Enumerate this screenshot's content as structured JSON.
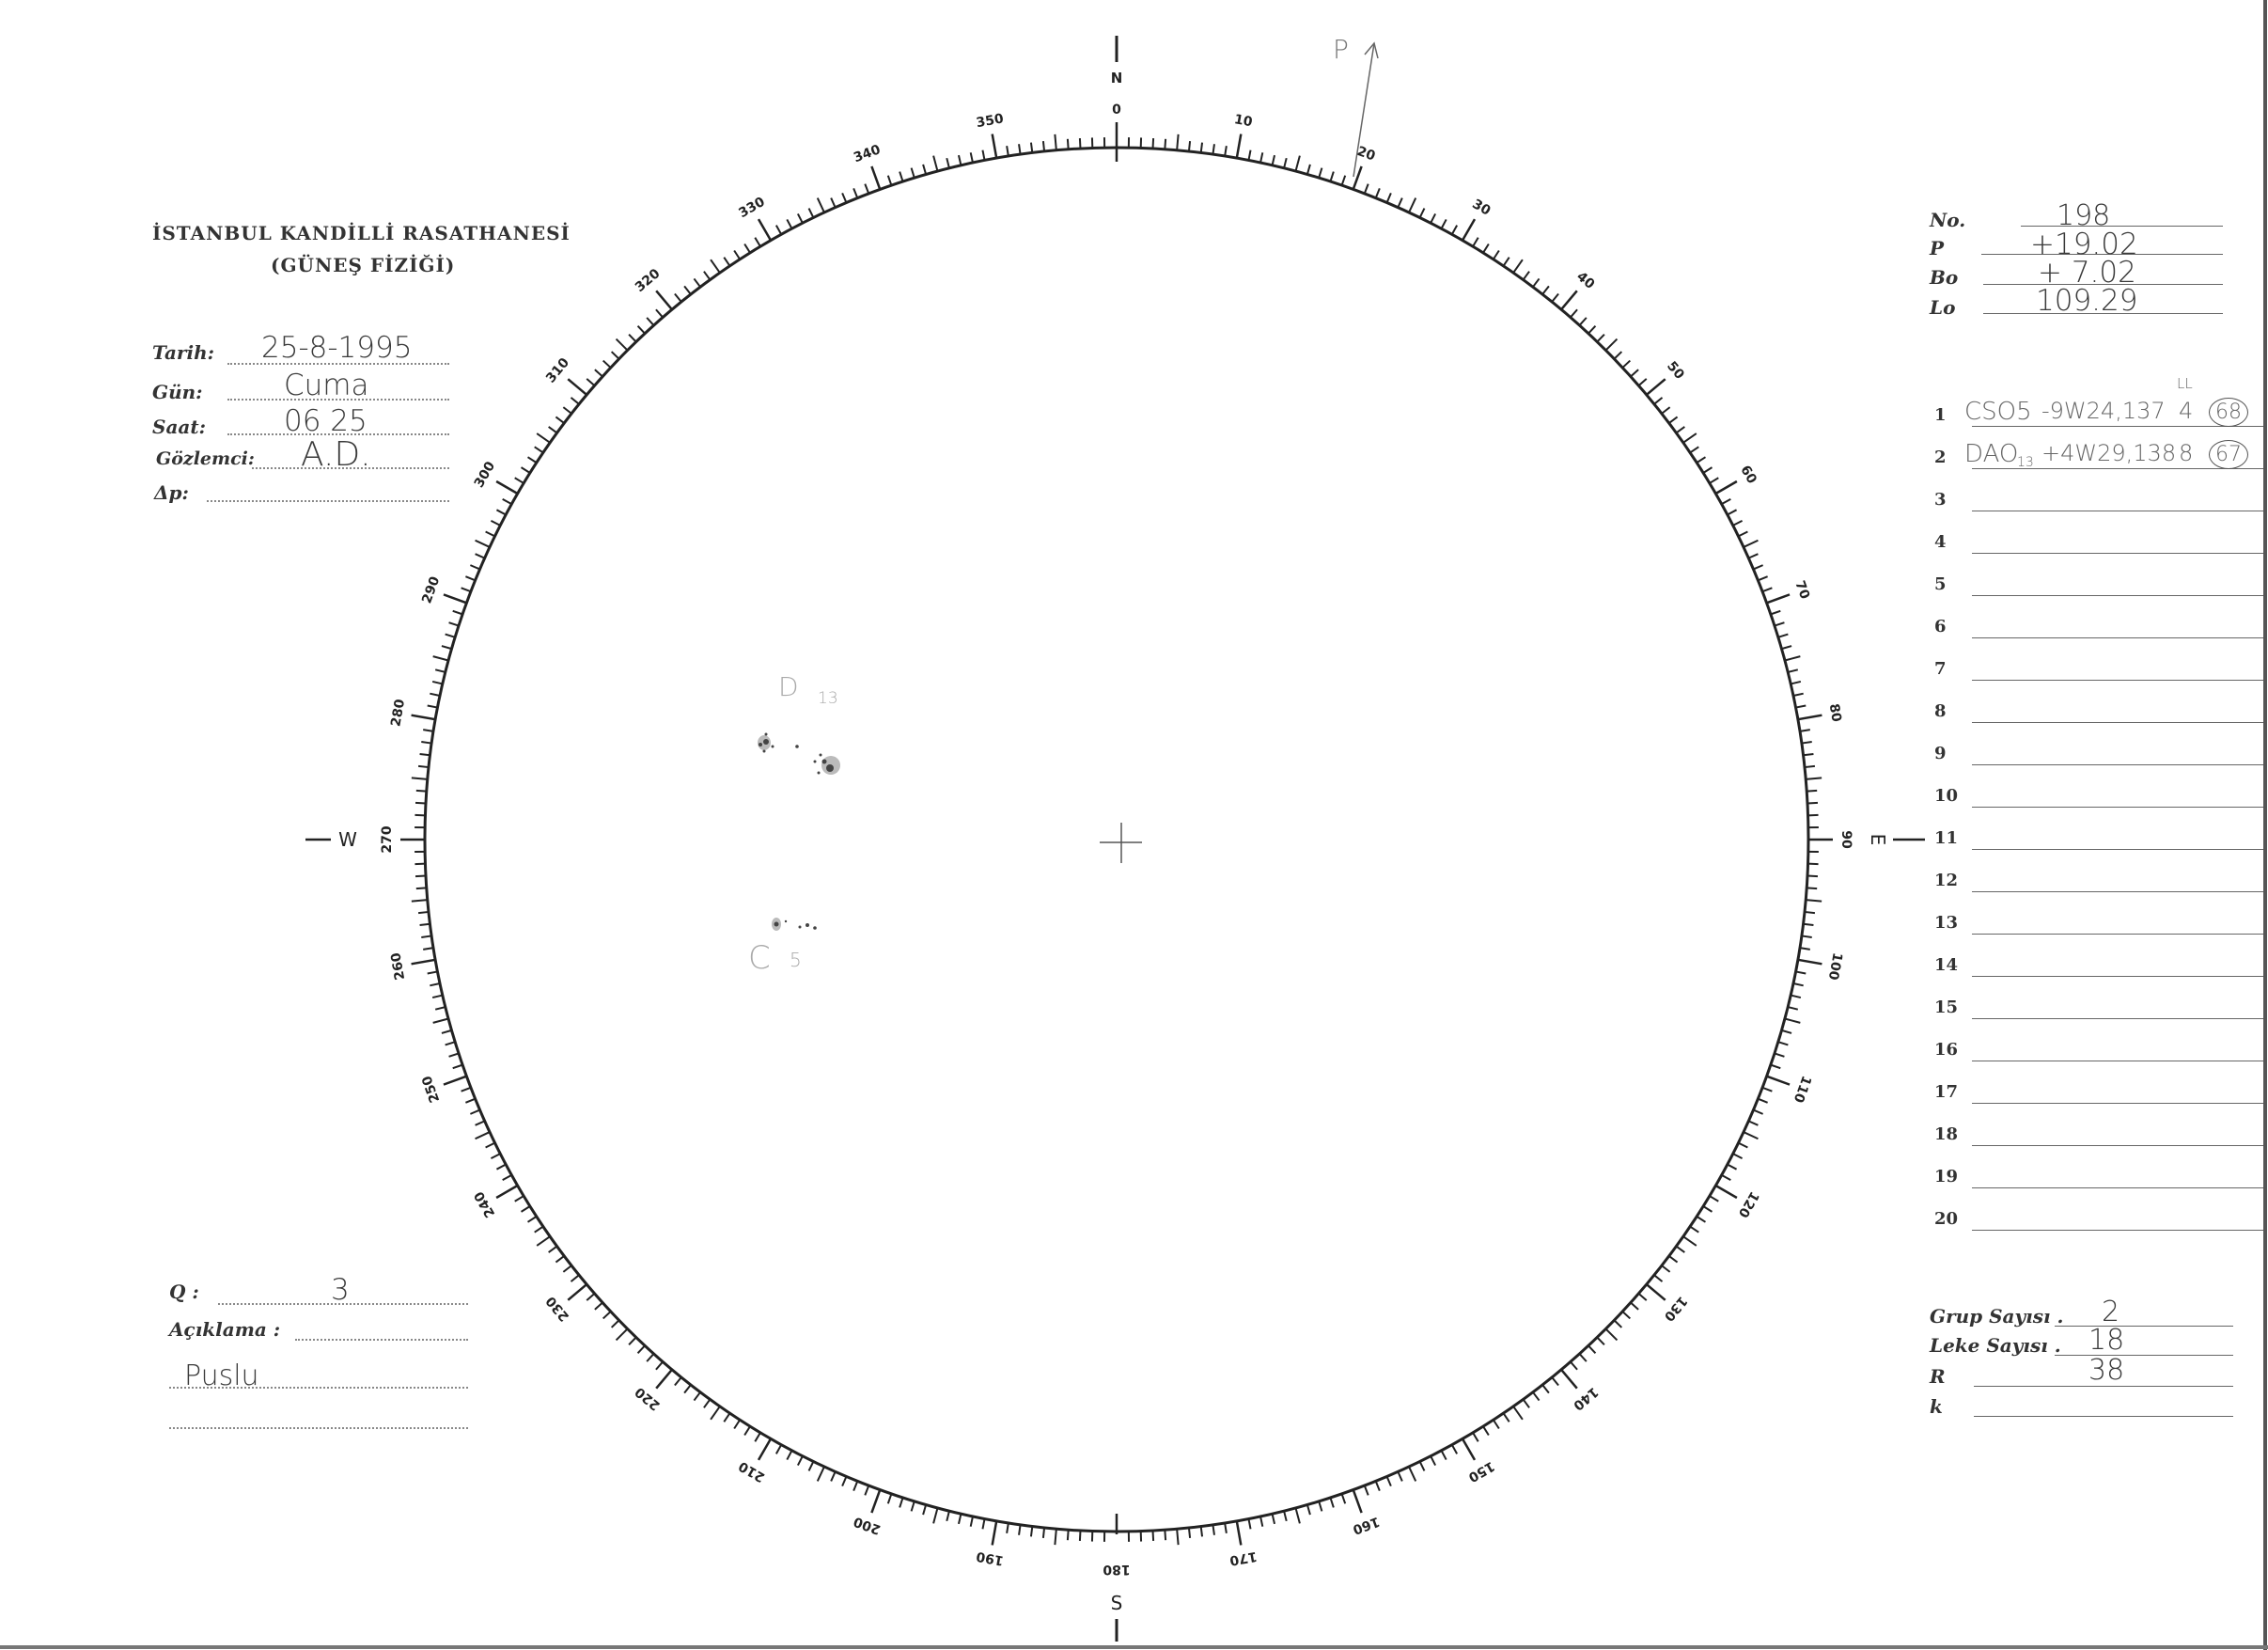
{
  "header": {
    "institution": "İSTANBUL KANDİLLİ RASATHANESİ",
    "department": "(GÜNEŞ FİZİĞİ)"
  },
  "observation": {
    "tarih_label": "Tarih:",
    "tarih_value": "25-8-1995",
    "gun_label": "Gün:",
    "gun_value": "Cuma",
    "saat_label": "Saat:",
    "saat_value": "06 25",
    "gozlemci_label": "Gözlemci:",
    "gozlemci_value": "A.D.",
    "dp_label": "Δp:",
    "dp_value": ""
  },
  "quality": {
    "q_label": "Q :",
    "q_value": "3",
    "aciklama_label": "Açıklama :",
    "aciklama_value": "Puslu"
  },
  "ephemeris": {
    "no_label": "No.",
    "no_value": "198",
    "p_label": "P",
    "p_value": "+19.02",
    "bo_label": "Bo",
    "bo_value": "+ 7.02",
    "lo_label": "Lo",
    "lo_value": "109.29"
  },
  "groups": [
    {
      "num": "1",
      "class": "CSO5",
      "class_sub": "",
      "position": "-9W24,137",
      "note": "LL",
      "count": "4",
      "id": "68"
    },
    {
      "num": "2",
      "class": "DAO",
      "class_sub": "13",
      "position": "+4W29,138",
      "note": "",
      "count": "8",
      "id": "67"
    },
    {
      "num": "3"
    },
    {
      "num": "4"
    },
    {
      "num": "5"
    },
    {
      "num": "6"
    },
    {
      "num": "7"
    },
    {
      "num": "8"
    },
    {
      "num": "9"
    },
    {
      "num": "10"
    },
    {
      "num": "11"
    },
    {
      "num": "12"
    },
    {
      "num": "13"
    },
    {
      "num": "14"
    },
    {
      "num": "15"
    },
    {
      "num": "16"
    },
    {
      "num": "17"
    },
    {
      "num": "18"
    },
    {
      "num": "19"
    },
    {
      "num": "20"
    }
  ],
  "summary": {
    "grup_label": "Grup Sayısı .",
    "grup_value": "2",
    "leke_label": "Leke Sayısı .",
    "leke_value": "18",
    "r_label": "R",
    "r_value": "38",
    "k_label": "k",
    "k_value": ""
  },
  "disk": {
    "cardinal": {
      "north": "N",
      "east": "E",
      "south": "S",
      "west": "W"
    },
    "scale_labels": [
      "0",
      "10",
      "20",
      "30",
      "40",
      "50",
      "60",
      "70",
      "80",
      "90",
      "100",
      "110",
      "120",
      "130",
      "140",
      "150",
      "160",
      "170",
      "180",
      "190",
      "200",
      "210",
      "220",
      "230",
      "240",
      "250",
      "260",
      "270",
      "280",
      "290",
      "300",
      "310",
      "320",
      "330",
      "340",
      "350"
    ],
    "p_axis_label": "P",
    "group_d_label": "D",
    "group_d_count": "13",
    "group_c_label": "C",
    "group_c_count": "5"
  }
}
